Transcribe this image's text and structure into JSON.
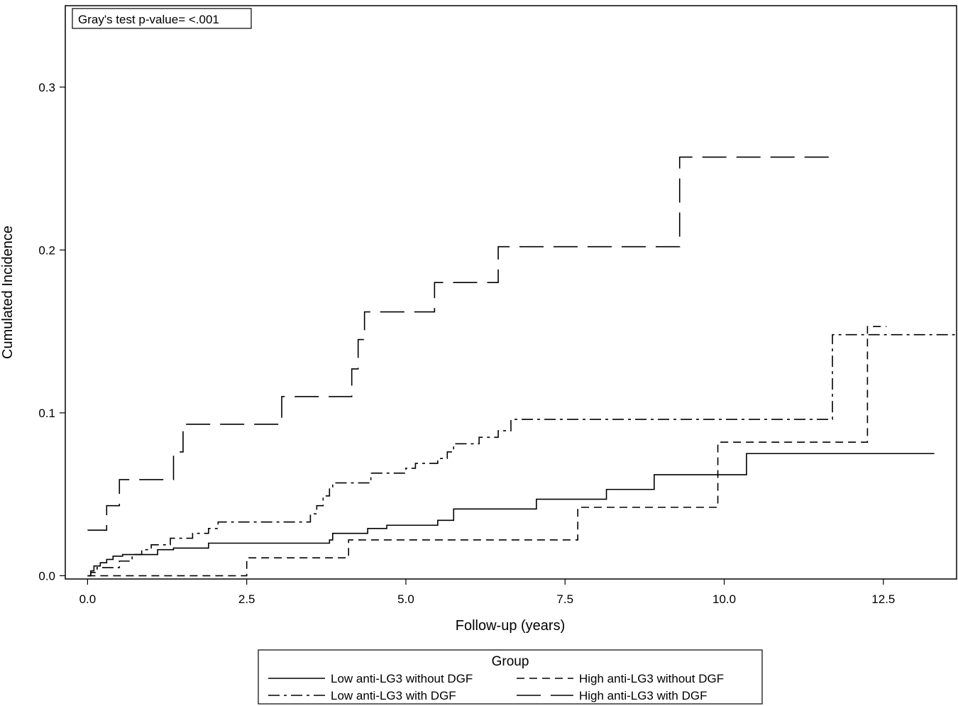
{
  "chart_data": {
    "type": "line",
    "step": true,
    "annotation": "Gray's test p-value= <.001",
    "xlabel": "Follow-up (years)",
    "ylabel": "Cumulated Incidence",
    "xlim": [
      -0.35,
      13.65
    ],
    "ylim": [
      -0.002,
      0.35
    ],
    "x_ticks": [
      0.0,
      2.5,
      5.0,
      7.5,
      10.0,
      12.5
    ],
    "x_tick_labels": [
      "0.0",
      "2.5",
      "5.0",
      "7.5",
      "10.0",
      "12.5"
    ],
    "y_ticks": [
      0.0,
      0.1,
      0.2,
      0.3
    ],
    "y_tick_labels": [
      "0.0",
      "0.1",
      "0.2",
      "0.3"
    ],
    "grid": false,
    "legend": {
      "title": "Group",
      "placement": "bottom"
    },
    "series": [
      {
        "name": "Low anti-LG3 without DGF",
        "line_style": "solid",
        "x": [
          0.0,
          0.05,
          0.1,
          0.2,
          0.3,
          0.4,
          0.55,
          1.1,
          1.35,
          1.9,
          3.8,
          3.85,
          4.4,
          4.7,
          5.5,
          5.75,
          7.05,
          8.15,
          8.9,
          10.35,
          13.3
        ],
        "y": [
          0.0,
          0.003,
          0.006,
          0.008,
          0.01,
          0.012,
          0.013,
          0.016,
          0.017,
          0.02,
          0.022,
          0.026,
          0.029,
          0.031,
          0.034,
          0.041,
          0.047,
          0.053,
          0.062,
          0.075,
          0.075
        ]
      },
      {
        "name": "High anti-LG3 without DGF",
        "line_style": "dashed",
        "x": [
          0.0,
          2.5,
          4.1,
          7.7,
          9.9,
          12.25,
          12.55
        ],
        "y": [
          0.0,
          0.011,
          0.022,
          0.042,
          0.082,
          0.153,
          0.153
        ]
      },
      {
        "name": "Low anti-LG3 with DGF",
        "line_style": "dashdot",
        "x": [
          0.0,
          0.05,
          0.15,
          0.5,
          0.7,
          0.85,
          1.0,
          1.3,
          1.65,
          1.9,
          2.05,
          3.5,
          3.6,
          3.7,
          3.8,
          3.85,
          4.45,
          5.0,
          5.15,
          5.5,
          5.65,
          5.75,
          6.15,
          6.45,
          6.65,
          11.7,
          13.65
        ],
        "y": [
          0.0,
          0.002,
          0.005,
          0.009,
          0.013,
          0.016,
          0.019,
          0.023,
          0.026,
          0.029,
          0.033,
          0.038,
          0.043,
          0.049,
          0.054,
          0.057,
          0.063,
          0.066,
          0.069,
          0.072,
          0.076,
          0.081,
          0.085,
          0.089,
          0.096,
          0.148,
          0.148
        ]
      },
      {
        "name": "High anti-LG3 with DGF",
        "line_style": "longdash",
        "x": [
          0.0,
          0.3,
          0.5,
          1.35,
          1.5,
          3.05,
          4.15,
          4.25,
          4.35,
          5.45,
          6.45,
          9.3,
          11.65
        ],
        "y": [
          0.028,
          0.043,
          0.059,
          0.076,
          0.093,
          0.11,
          0.127,
          0.145,
          0.162,
          0.18,
          0.202,
          0.257,
          0.257
        ]
      }
    ]
  }
}
